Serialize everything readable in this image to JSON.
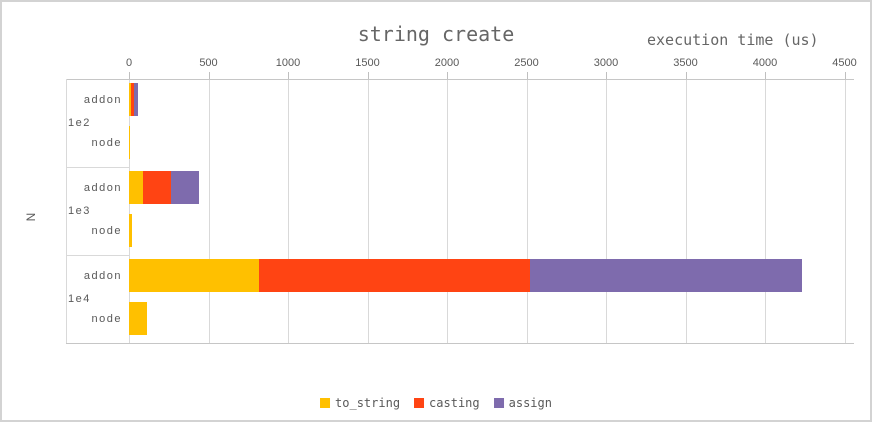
{
  "chart_data": {
    "type": "bar",
    "orientation": "horizontal",
    "stacked": true,
    "title": "string create",
    "xlabel": "execution time (us)",
    "ylabel": "N",
    "xlim": [
      0,
      4500
    ],
    "xticks": [
      0,
      500,
      1000,
      1500,
      2000,
      2500,
      3000,
      3500,
      4000,
      4500
    ],
    "grid": true,
    "legend_position": "bottom",
    "series_names": [
      "to_string",
      "casting",
      "assign"
    ],
    "series_colors": [
      "#FFC000",
      "#FF4413",
      "#7E6BAD"
    ],
    "groups": [
      {
        "label": "1e2",
        "rows": [
          {
            "label": "addon",
            "values": [
              10,
              20,
              25
            ]
          },
          {
            "label": "node",
            "values": [
              4,
              0,
              0
            ]
          }
        ]
      },
      {
        "label": "1e3",
        "rows": [
          {
            "label": "addon",
            "values": [
              90,
              175,
              175
            ]
          },
          {
            "label": "node",
            "values": [
              20,
              0,
              0
            ]
          }
        ]
      },
      {
        "label": "1e4",
        "rows": [
          {
            "label": "addon",
            "values": [
              820,
              1700,
              1710
            ]
          },
          {
            "label": "node",
            "values": [
              115,
              0,
              0
            ]
          }
        ]
      }
    ]
  }
}
